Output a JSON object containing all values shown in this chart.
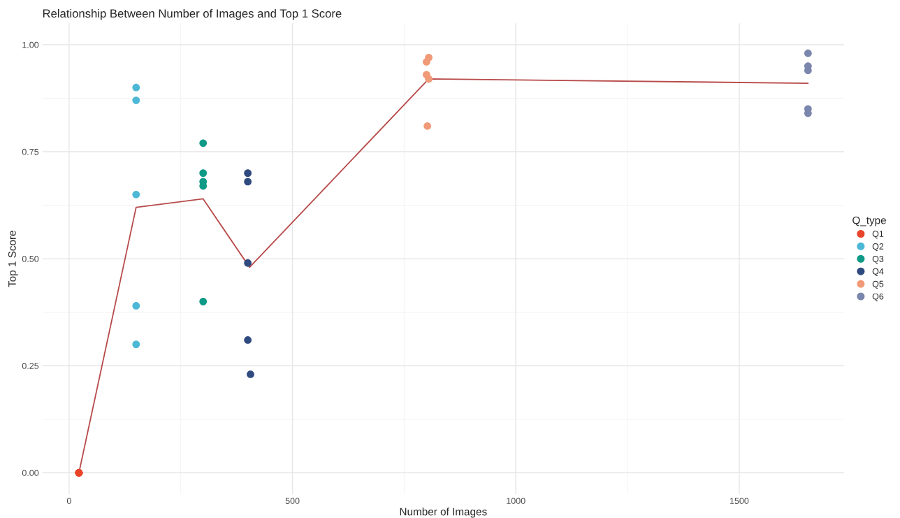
{
  "chart_data": {
    "type": "scatter",
    "title": "Relationship Between Number of Images and Top 1 Score",
    "xlabel": "Number of Images",
    "ylabel": "Top 1 Score",
    "legend_title": "Q_type",
    "series": [
      {
        "name": "Q1",
        "color": "#e8442a",
        "x": [
          22,
          22,
          22,
          22,
          22
        ],
        "values": [
          0,
          0,
          0,
          0,
          0
        ]
      },
      {
        "name": "Q2",
        "color": "#4db8d6",
        "x": [
          150,
          150,
          150,
          150,
          150
        ],
        "values": [
          0.9,
          0.87,
          0.65,
          0.39,
          0.3
        ]
      },
      {
        "name": "Q3",
        "color": "#0f9a88",
        "x": [
          300,
          300,
          300,
          300,
          300
        ],
        "values": [
          0.77,
          0.7,
          0.68,
          0.67,
          0.4
        ]
      },
      {
        "name": "Q4",
        "color": "#2e4a7f",
        "x": [
          400,
          400,
          400,
          400,
          406
        ],
        "values": [
          0.7,
          0.68,
          0.49,
          0.31,
          0.23
        ]
      },
      {
        "name": "Q5",
        "color": "#f09a78",
        "x": [
          805,
          800,
          800,
          805,
          802
        ],
        "values": [
          0.97,
          0.96,
          0.93,
          0.92,
          0.81
        ]
      },
      {
        "name": "Q6",
        "color": "#7a86ac",
        "x": [
          1654,
          1654,
          1654,
          1654,
          1654
        ],
        "values": [
          0.98,
          0.95,
          0.94,
          0.85,
          0.84
        ]
      },
      {
        "type": "line",
        "marker": "none",
        "color": "#b84a4a",
        "x": [
          22,
          150,
          300,
          404,
          805,
          1654
        ],
        "values": [
          0,
          0.62,
          0.64,
          0.48,
          0.92,
          0.91
        ]
      }
    ],
    "xlim": [
      -60,
      1735
    ],
    "ylim": [
      -0.05,
      1.05
    ],
    "xticks": [
      0,
      500,
      1000,
      1500
    ],
    "yticks": [
      {
        "value": 0,
        "label": "0.00"
      },
      {
        "value": 0.25,
        "label": "0.25"
      },
      {
        "value": 0.5,
        "label": "0.50"
      },
      {
        "value": 0.75,
        "label": "0.75"
      },
      {
        "value": 1,
        "label": "1.00"
      }
    ],
    "grid": true,
    "legend": "right",
    "marker": "circle"
  }
}
